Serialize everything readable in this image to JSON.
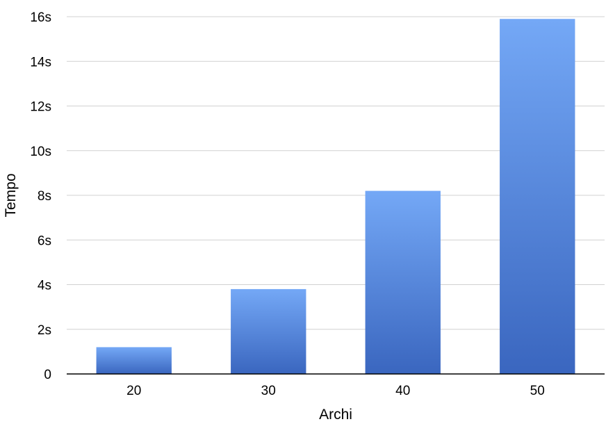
{
  "chart_data": {
    "type": "bar",
    "xlabel": "Archi",
    "ylabel": "Tempo",
    "categories": [
      "20",
      "30",
      "40",
      "50"
    ],
    "values": [
      1.2,
      3.8,
      8.2,
      15.9
    ],
    "ylim": [
      0,
      16
    ],
    "y_ticks": [
      0,
      2,
      4,
      6,
      8,
      10,
      12,
      14,
      16
    ],
    "y_tick_labels": [
      "0",
      "2s",
      "4s",
      "6s",
      "8s",
      "10s",
      "12s",
      "14s",
      "16s"
    ],
    "grid": true,
    "legend": "none",
    "colors": {
      "bar_top": "#74a8f6",
      "bar_bottom": "#3a66bf",
      "grid": "#d0d0d0",
      "axis": "#000000"
    }
  }
}
